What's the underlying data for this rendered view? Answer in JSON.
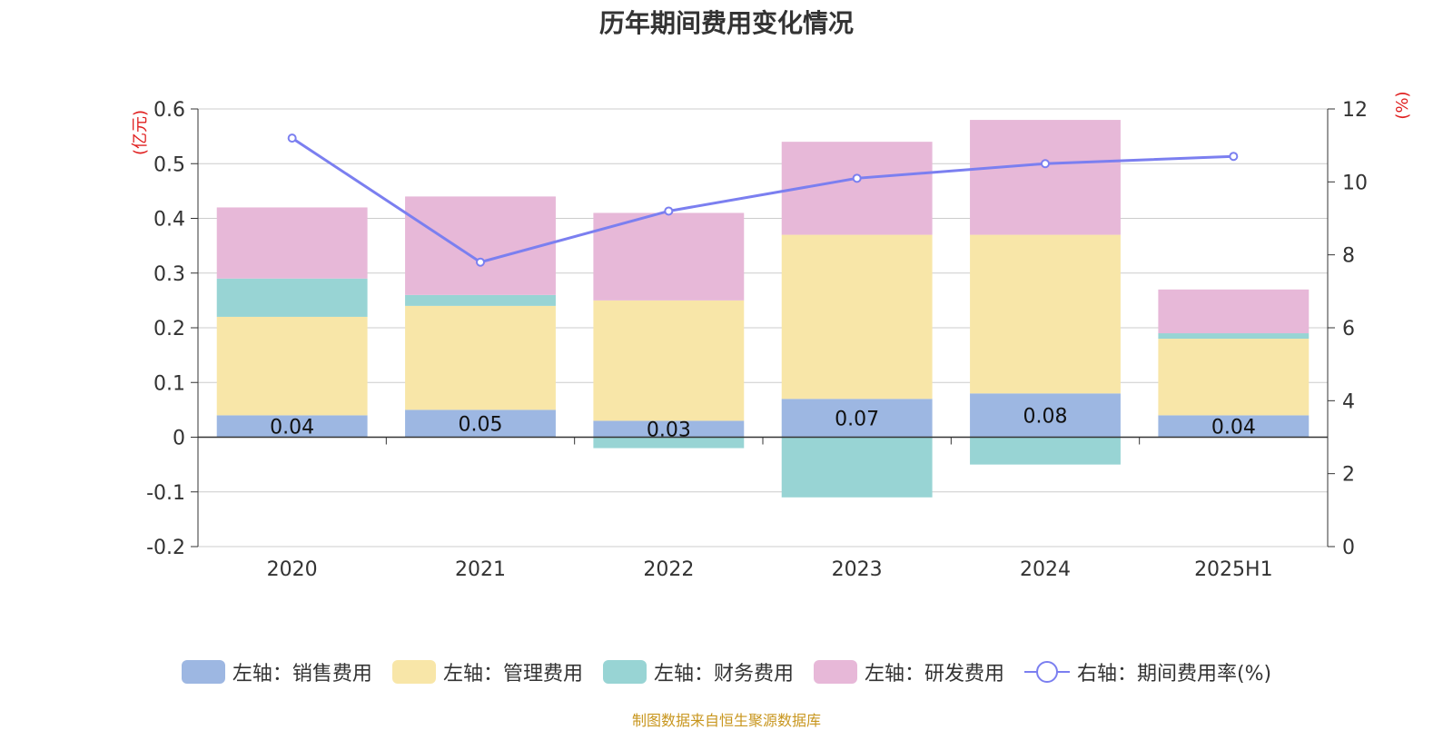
{
  "chart_title": "历年期间费用变化情况",
  "source_note": "制图数据来自恒生聚源数据库",
  "colors": {
    "sales": "#9db7e2",
    "admin": "#f8e6a8",
    "finance": "#98d4d4",
    "rd": "#e7b8d8",
    "rate_line": "#7b7ff0",
    "unit_text": "#e02020"
  },
  "chart_data": {
    "type": "bar",
    "stacked": true,
    "title": "历年期间费用变化情况",
    "categories": [
      "2020",
      "2021",
      "2022",
      "2023",
      "2024",
      "2025H1"
    ],
    "left_axis": {
      "unit": "(亿元)",
      "ylim": [
        -0.2,
        0.6
      ],
      "ticks": [
        "0.6",
        "0.5",
        "0.4",
        "0.3",
        "0.2",
        "0.1",
        "0",
        "-0.1",
        "-0.2"
      ]
    },
    "right_axis": {
      "unit": "(%)",
      "ylim": [
        0,
        12
      ],
      "ticks": [
        "12",
        "10",
        "8",
        "6",
        "4",
        "2",
        "0"
      ]
    },
    "series": [
      {
        "key": "sales",
        "name": "左轴：销售费用",
        "axis": "left",
        "values": [
          0.04,
          0.05,
          0.03,
          0.07,
          0.08,
          0.04
        ],
        "labels": [
          "0.04",
          "0.05",
          "0.03",
          "0.07",
          "0.08",
          "0.04"
        ]
      },
      {
        "key": "admin",
        "name": "左轴：管理费用",
        "axis": "left",
        "values": [
          0.18,
          0.19,
          0.22,
          0.3,
          0.29,
          0.14
        ]
      },
      {
        "key": "finance",
        "name": "左轴：财务费用",
        "axis": "left",
        "values": [
          0.07,
          0.02,
          -0.02,
          -0.11,
          -0.05,
          0.01
        ]
      },
      {
        "key": "rd",
        "name": "左轴：研发费用",
        "axis": "left",
        "values": [
          0.13,
          0.18,
          0.16,
          0.17,
          0.21,
          0.08
        ]
      },
      {
        "key": "rate",
        "name": "右轴：期间费用率(%)",
        "axis": "right",
        "type": "line",
        "values": [
          11.2,
          7.8,
          9.2,
          10.1,
          10.5,
          10.7
        ]
      }
    ],
    "grid": true,
    "legend_position": "bottom"
  }
}
